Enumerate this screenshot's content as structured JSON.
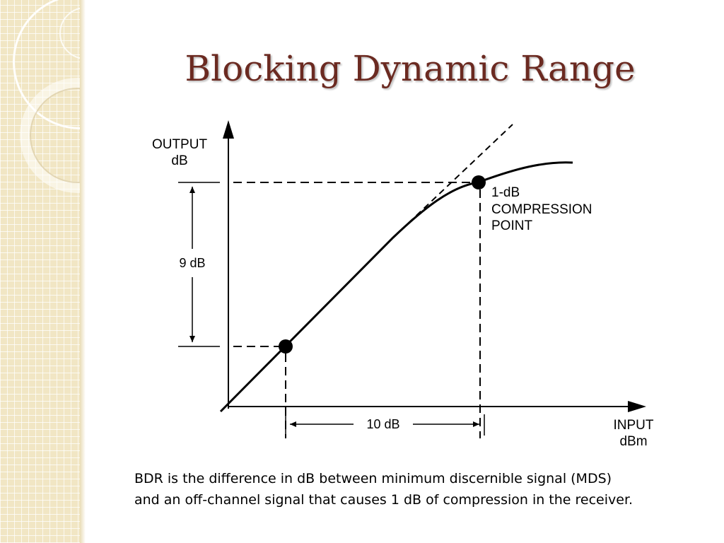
{
  "slide": {
    "title": "Blocking Dynamic Range",
    "caption_line1": "BDR is the difference in dB between minimum discernible signal (MDS)",
    "caption_line2": "and an off-channel signal that causes 1 dB of compression in the receiver."
  },
  "diagram": {
    "y_axis_label_1": "OUTPUT",
    "y_axis_label_2": "dB",
    "x_axis_label_1": "INPUT",
    "x_axis_label_2": "dBm",
    "vertical_span_label": "9 dB",
    "horizontal_span_label": "10 dB",
    "point_label_1": "1-dB",
    "point_label_2": "COMPRESSION",
    "point_label_3": "POINT"
  }
}
